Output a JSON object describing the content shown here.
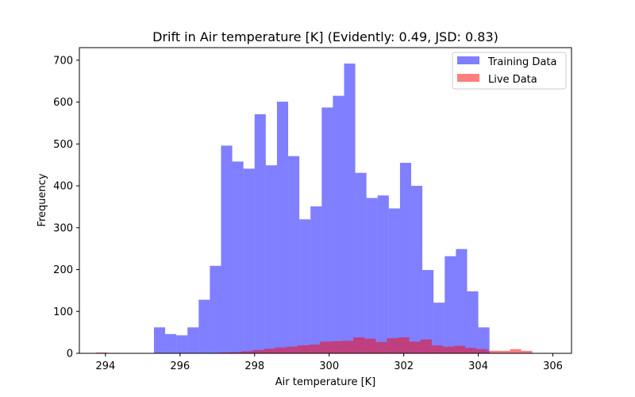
{
  "chart_data": {
    "type": "bar",
    "title": "Drift in Air temperature [K] (Evidently: 0.49, JSD: 0.83)",
    "xlabel": "Air temperature [K]",
    "ylabel": "Frequency",
    "xlim": [
      293.3,
      306.5
    ],
    "ylim": [
      0,
      730
    ],
    "xticks": [
      294,
      296,
      298,
      300,
      302,
      304,
      306
    ],
    "yticks": [
      0,
      100,
      200,
      300,
      400,
      500,
      600,
      700
    ],
    "grid": false,
    "legend_position": "top-right",
    "series": [
      {
        "name": "Training Data",
        "color": "#0000ff",
        "opacity": 0.5,
        "bin_start": 295.3,
        "bin_width": 0.3,
        "values": [
          62,
          46,
          43,
          62,
          128,
          209,
          496,
          458,
          441,
          571,
          449,
          601,
          471,
          320,
          351,
          587,
          615,
          692,
          431,
          371,
          377,
          346,
          455,
          400,
          199,
          121,
          232,
          249,
          148,
          62
        ]
      },
      {
        "name": "Live Data",
        "color": "#ff0000",
        "opacity": 0.5,
        "bin_start": 293.75,
        "bin_width": 0.3,
        "values": [
          2,
          1,
          0,
          0,
          0,
          0,
          0,
          0,
          1,
          1,
          1,
          2,
          3,
          5,
          8,
          11,
          14,
          16,
          19,
          21,
          28,
          29,
          30,
          38,
          35,
          27,
          36,
          38,
          28,
          33,
          19,
          16,
          18,
          13,
          10,
          6,
          6,
          10,
          6
        ]
      }
    ]
  }
}
